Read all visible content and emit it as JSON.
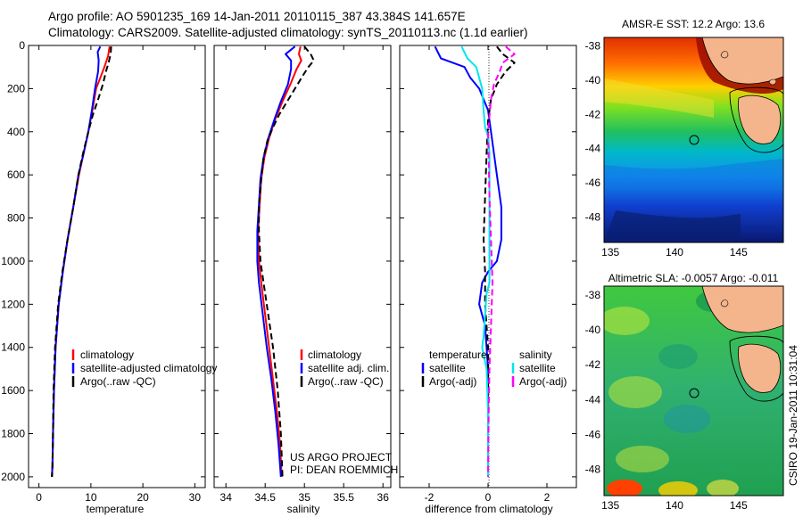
{
  "header": {
    "line1": "Argo profile: AO 5901235_169 14-Jan-2011 20110115_387 43.384S 141.657E",
    "line2": "Climatology: CARS2009. Satellite-adjusted climatology: synTS_20110113.nc (1.1d earlier)"
  },
  "side_label": "CSIRO 19-Jan-2011 10:31:04",
  "credits": {
    "line1": "US ARGO PROJECT",
    "line2": "PI: DEAN ROEMMICH"
  },
  "colors": {
    "climatology": "#ff0000",
    "satellite": "#0000ff",
    "argo": "#000000",
    "cyan": "#00e5ee",
    "magenta": "#ff00ff",
    "land": "#f4b48c"
  },
  "chart_data": [
    {
      "type": "line",
      "panel": "temperature",
      "xlabel": "temperature",
      "xlim": [
        -2,
        32
      ],
      "xticks": [
        0,
        10,
        20,
        30
      ],
      "ylim": [
        0,
        2050
      ],
      "yticks": [
        0,
        200,
        400,
        600,
        800,
        1000,
        1200,
        1400,
        1600,
        1800,
        2000
      ],
      "y_reversed": true,
      "legend": [
        "climatology",
        "satellite-adjusted climatology",
        "Argo(..raw -QC)"
      ],
      "series": [
        {
          "name": "climatology",
          "color": "#ff0000",
          "style": "solid",
          "x": [
            13.6,
            13.3,
            12.6,
            11.8,
            11.0,
            10.3,
            9.5,
            8.6,
            7.7,
            6.6,
            5.5,
            4.6,
            3.8,
            3.2,
            2.9,
            2.7,
            2.6,
            2.5
          ],
          "y": [
            5,
            50,
            100,
            150,
            200,
            300,
            400,
            500,
            600,
            750,
            900,
            1050,
            1200,
            1400,
            1600,
            1800,
            1950,
            2000
          ]
        },
        {
          "name": "satellite-adjusted climatology",
          "color": "#0000ff",
          "style": "solid",
          "x": [
            11.8,
            11.3,
            11.5,
            11.4,
            10.8,
            10.2,
            9.5,
            8.6,
            7.6,
            6.6,
            5.5,
            4.6,
            3.8,
            3.2,
            2.9,
            2.7,
            2.6,
            2.5
          ],
          "y": [
            5,
            30,
            70,
            120,
            200,
            300,
            400,
            500,
            600,
            750,
            900,
            1050,
            1200,
            1400,
            1600,
            1800,
            1950,
            2000
          ]
        },
        {
          "name": "Argo(..raw -QC)",
          "color": "#000000",
          "style": "dashed",
          "x": [
            13.9,
            13.8,
            13.4,
            12.9,
            12.3,
            11.4,
            10.4,
            9.5,
            8.5,
            7.6,
            6.6,
            5.5,
            4.5,
            3.7,
            3.1,
            2.8,
            2.7,
            2.6,
            2.5
          ],
          "y": [
            5,
            40,
            80,
            120,
            180,
            250,
            320,
            400,
            500,
            600,
            750,
            900,
            1050,
            1200,
            1400,
            1600,
            1800,
            1950,
            2000
          ]
        }
      ]
    },
    {
      "type": "line",
      "panel": "salinity",
      "xlabel": "salinity",
      "xlim": [
        33.85,
        36.1
      ],
      "xticks": [
        34,
        34.5,
        35,
        35.5,
        36
      ],
      "ylim": [
        0,
        2050
      ],
      "y_reversed": true,
      "legend": [
        "climatology",
        "satellite adj. clim.",
        "Argo(..raw -QC)"
      ],
      "series": [
        {
          "name": "climatology",
          "color": "#ff0000",
          "style": "solid",
          "x": [
            34.95,
            34.93,
            34.96,
            34.9,
            34.82,
            34.72,
            34.63,
            34.55,
            34.49,
            34.45,
            34.43,
            34.41,
            34.42,
            34.45,
            34.5,
            34.55,
            34.6,
            34.65,
            34.69,
            34.71
          ],
          "y": [
            5,
            40,
            70,
            110,
            180,
            260,
            340,
            430,
            520,
            620,
            740,
            860,
            1000,
            1100,
            1250,
            1400,
            1550,
            1700,
            1850,
            2000
          ]
        },
        {
          "name": "satellite adj. clim.",
          "color": "#0000ff",
          "style": "solid",
          "x": [
            34.88,
            34.76,
            34.83,
            34.83,
            34.79,
            34.7,
            34.62,
            34.54,
            34.48,
            34.44,
            34.42,
            34.4,
            34.4,
            34.42,
            34.47,
            34.52,
            34.58,
            34.63,
            34.67,
            34.7
          ],
          "y": [
            5,
            40,
            70,
            110,
            180,
            260,
            340,
            430,
            520,
            620,
            740,
            860,
            1000,
            1100,
            1250,
            1400,
            1550,
            1700,
            1850,
            2000
          ]
        },
        {
          "name": "Argo(..raw -QC)",
          "color": "#000000",
          "style": "dashed",
          "x": [
            35.0,
            35.08,
            35.12,
            35.05,
            34.98,
            34.88,
            34.78,
            34.68,
            34.6,
            34.53,
            34.48,
            34.45,
            34.42,
            34.42,
            34.44,
            34.48,
            34.54,
            34.6,
            34.66,
            34.7,
            34.72
          ],
          "y": [
            5,
            40,
            70,
            100,
            140,
            200,
            260,
            320,
            380,
            440,
            520,
            620,
            740,
            860,
            1000,
            1100,
            1250,
            1400,
            1600,
            1800,
            2000
          ]
        }
      ]
    },
    {
      "type": "line",
      "panel": "difference",
      "xlabel": "difference from climatology",
      "xlim": [
        -3,
        3
      ],
      "xticks": [
        -2,
        0,
        2
      ],
      "ylim": [
        0,
        2050
      ],
      "y_reversed": true,
      "legend": [
        "temperature",
        "satellite",
        "Argo(-adj)",
        "salinity",
        "satellite",
        "Argo(-adj)"
      ],
      "series": [
        {
          "name": "temperature satellite",
          "color": "#0000ff",
          "style": "solid",
          "x": [
            -1.8,
            -1.6,
            -0.8,
            -0.6,
            -0.3,
            0.0,
            0.1,
            0.2,
            0.3,
            0.45,
            0.45,
            0.3,
            0.0,
            -0.2,
            -0.3,
            -0.1,
            0.0,
            0.0,
            0.0
          ],
          "y": [
            5,
            60,
            100,
            150,
            200,
            300,
            400,
            500,
            600,
            750,
            900,
            1000,
            1050,
            1100,
            1200,
            1300,
            1500,
            1800,
            2000
          ]
        },
        {
          "name": "temperature Argo(-adj)",
          "color": "#000000",
          "style": "dashed",
          "x": [
            0.3,
            0.5,
            0.9,
            0.6,
            0.3,
            0.1,
            0.0,
            -0.05,
            -0.1,
            -0.15,
            -0.1,
            -0.1,
            0.0,
            0.0,
            0.0
          ],
          "y": [
            5,
            40,
            80,
            120,
            180,
            250,
            350,
            500,
            700,
            900,
            1050,
            1200,
            1400,
            1700,
            2000
          ]
        },
        {
          "name": "salinity satellite",
          "color": "#00e5ee",
          "style": "solid",
          "x": [
            -0.9,
            -0.7,
            -0.4,
            -0.3,
            -0.2,
            -0.15,
            -0.1,
            0.0,
            0.05,
            0.05,
            0.05,
            0.05,
            0.05,
            -0.05,
            -0.1,
            -0.15,
            -0.2,
            -0.05,
            0.0,
            0.0
          ],
          "y": [
            5,
            60,
            100,
            150,
            200,
            300,
            380,
            420,
            500,
            600,
            800,
            1000,
            1100,
            1150,
            1250,
            1350,
            1400,
            1500,
            1700,
            2000
          ]
        },
        {
          "name": "salinity Argo(-adj)",
          "color": "#ff00ff",
          "style": "dashed",
          "x": [
            0.6,
            0.9,
            0.5,
            0.4,
            0.2,
            0.1,
            0.0,
            0.05,
            0.1,
            0.15,
            0.1,
            0.05,
            0.02,
            0.0
          ],
          "y": [
            5,
            40,
            80,
            120,
            180,
            250,
            400,
            700,
            900,
            1100,
            1300,
            1500,
            1700,
            2000
          ]
        }
      ]
    },
    {
      "type": "heatmap",
      "panel": "sst_map",
      "title": "AMSR-E SST: 12.2 Argo: 13.6",
      "xlim": [
        134.5,
        148.5
      ],
      "xticks": [
        135,
        140,
        145
      ],
      "ylim": [
        -49.5,
        -37.5
      ],
      "yticks": [
        -38,
        -40,
        -42,
        -44,
        -46,
        -48
      ],
      "argo_position": {
        "lon": 141.657,
        "lat": -43.384
      }
    },
    {
      "type": "heatmap",
      "panel": "sla_map",
      "title": "Altimetric SLA: -0.0057 Argo: -0.011",
      "xlim": [
        134.5,
        148.5
      ],
      "xticks": [
        135,
        140,
        145
      ],
      "ylim": [
        -49.5,
        -37.5
      ],
      "yticks": [
        -38,
        -40,
        -42,
        -44,
        -46,
        -48
      ],
      "argo_position": {
        "lon": 141.657,
        "lat": -43.384
      }
    }
  ]
}
